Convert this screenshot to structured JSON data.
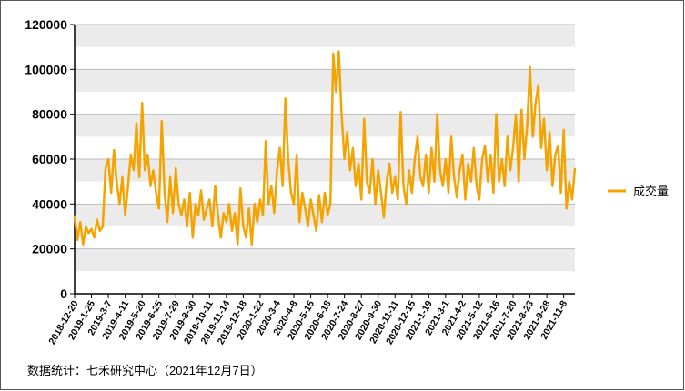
{
  "chart_data": {
    "type": "line",
    "categories": [
      "2018-12-20",
      null,
      null,
      null,
      null,
      null,
      "2019-1-25",
      null,
      null,
      null,
      null,
      null,
      "2019-3-7",
      null,
      null,
      null,
      null,
      null,
      "2019-4-11",
      null,
      null,
      null,
      null,
      null,
      "2019-5-20",
      null,
      null,
      null,
      null,
      null,
      "2019-6-25",
      null,
      null,
      null,
      null,
      null,
      "2019-7-29",
      null,
      null,
      null,
      null,
      null,
      "2019-8-30",
      null,
      null,
      null,
      null,
      null,
      "2019-10-11",
      null,
      null,
      null,
      null,
      null,
      "2019-11-14",
      null,
      null,
      null,
      null,
      null,
      "2019-12-18",
      null,
      null,
      null,
      null,
      null,
      "2020-1-22",
      null,
      null,
      null,
      null,
      null,
      "2020-3-4",
      null,
      null,
      null,
      null,
      null,
      "2020-4-8",
      null,
      null,
      null,
      null,
      null,
      "2020-5-15",
      null,
      null,
      null,
      null,
      null,
      "2020-6-18",
      null,
      null,
      null,
      null,
      null,
      "2020-7-24",
      null,
      null,
      null,
      null,
      null,
      "2020-8-27",
      null,
      null,
      null,
      null,
      null,
      "2020-9-30",
      null,
      null,
      null,
      null,
      null,
      "2020-11-11",
      null,
      null,
      null,
      null,
      null,
      "2020-12-15",
      null,
      null,
      null,
      null,
      null,
      "2021-1-19",
      null,
      null,
      null,
      null,
      null,
      "2021-3-1",
      null,
      null,
      null,
      null,
      null,
      "2021-4-2",
      null,
      null,
      null,
      null,
      null,
      "2021-5-12",
      null,
      null,
      null,
      null,
      null,
      "2021-6-16",
      null,
      null,
      null,
      null,
      null,
      "2021-7-20",
      null,
      null,
      null,
      null,
      null,
      "2021-8-23",
      null,
      null,
      null,
      null,
      null,
      "2021-9-28",
      null,
      null,
      null,
      null,
      null,
      "2021-11-8",
      null,
      null,
      null,
      null
    ],
    "series": [
      {
        "name": "成交量",
        "color": "#f5a300",
        "values": [
          35000,
          24000,
          32000,
          22000,
          30000,
          27000,
          29000,
          25000,
          33000,
          28000,
          30000,
          56000,
          60000,
          45000,
          64000,
          50000,
          40000,
          52000,
          35000,
          48000,
          62000,
          55000,
          76000,
          52000,
          85000,
          55000,
          62000,
          48000,
          55000,
          45000,
          38000,
          77000,
          45000,
          32000,
          52000,
          36000,
          56000,
          40000,
          35000,
          42000,
          30000,
          45000,
          25000,
          40000,
          35000,
          46000,
          33000,
          38000,
          42000,
          30000,
          48000,
          35000,
          25000,
          36000,
          32000,
          40000,
          28000,
          36000,
          22000,
          47000,
          30000,
          25000,
          38000,
          22000,
          40000,
          32000,
          42000,
          35000,
          68000,
          40000,
          48000,
          36000,
          55000,
          65000,
          48000,
          87000,
          60000,
          45000,
          40000,
          62000,
          32000,
          45000,
          38000,
          30000,
          42000,
          35000,
          28000,
          44000,
          32000,
          45000,
          35000,
          40000,
          107000,
          90000,
          108000,
          80000,
          60000,
          72000,
          55000,
          65000,
          48000,
          58000,
          42000,
          78000,
          50000,
          45000,
          60000,
          40000,
          55000,
          45000,
          34000,
          50000,
          58000,
          45000,
          52000,
          42000,
          81000,
          48000,
          40000,
          55000,
          45000,
          60000,
          70000,
          52000,
          48000,
          62000,
          45000,
          65000,
          50000,
          80000,
          55000,
          48000,
          60000,
          45000,
          70000,
          52000,
          43000,
          55000,
          62000,
          42000,
          58000,
          50000,
          65000,
          48000,
          42000,
          60000,
          66000,
          50000,
          62000,
          45000,
          80000,
          50000,
          60000,
          48000,
          70000,
          55000,
          65000,
          80000,
          50000,
          82000,
          60000,
          75000,
          101000,
          70000,
          85000,
          93000,
          65000,
          78000,
          55000,
          72000,
          48000,
          62000,
          66000,
          45000,
          73000,
          38000,
          50000,
          42000,
          56000
        ]
      }
    ],
    "ylim": [
      0,
      120000
    ],
    "yticks": [
      0,
      20000,
      40000,
      60000,
      80000,
      100000,
      120000
    ],
    "legend": "right",
    "note": "数据统计：七禾研究中心（2021年12月7日）"
  }
}
